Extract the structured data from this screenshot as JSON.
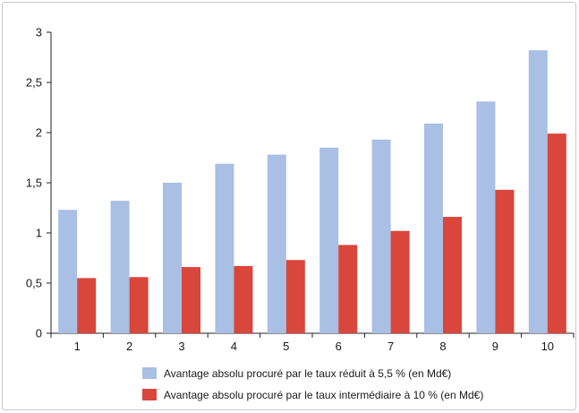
{
  "chart_data": {
    "type": "bar",
    "categories": [
      "1",
      "2",
      "3",
      "4",
      "5",
      "6",
      "7",
      "8",
      "9",
      "10"
    ],
    "series": [
      {
        "name": "Avantage absolu procuré par le taux réduit à 5,5 % (en Md€)",
        "color": "#a9bfe3",
        "values": [
          1.23,
          1.32,
          1.5,
          1.69,
          1.78,
          1.85,
          1.93,
          2.09,
          2.31,
          2.82
        ]
      },
      {
        "name": "Avantage absolu procuré par le taux intermédiaire à 10 % (en Md€)",
        "color": "#d9463b",
        "values": [
          0.55,
          0.56,
          0.66,
          0.67,
          0.73,
          0.88,
          1.02,
          1.16,
          1.43,
          1.99
        ]
      }
    ],
    "y_ticks": [
      "0",
      "0,5",
      "1",
      "1,5",
      "2",
      "2,5",
      "3"
    ],
    "ylim": [
      0,
      3
    ],
    "grid": false,
    "legend_position": "bottom"
  }
}
